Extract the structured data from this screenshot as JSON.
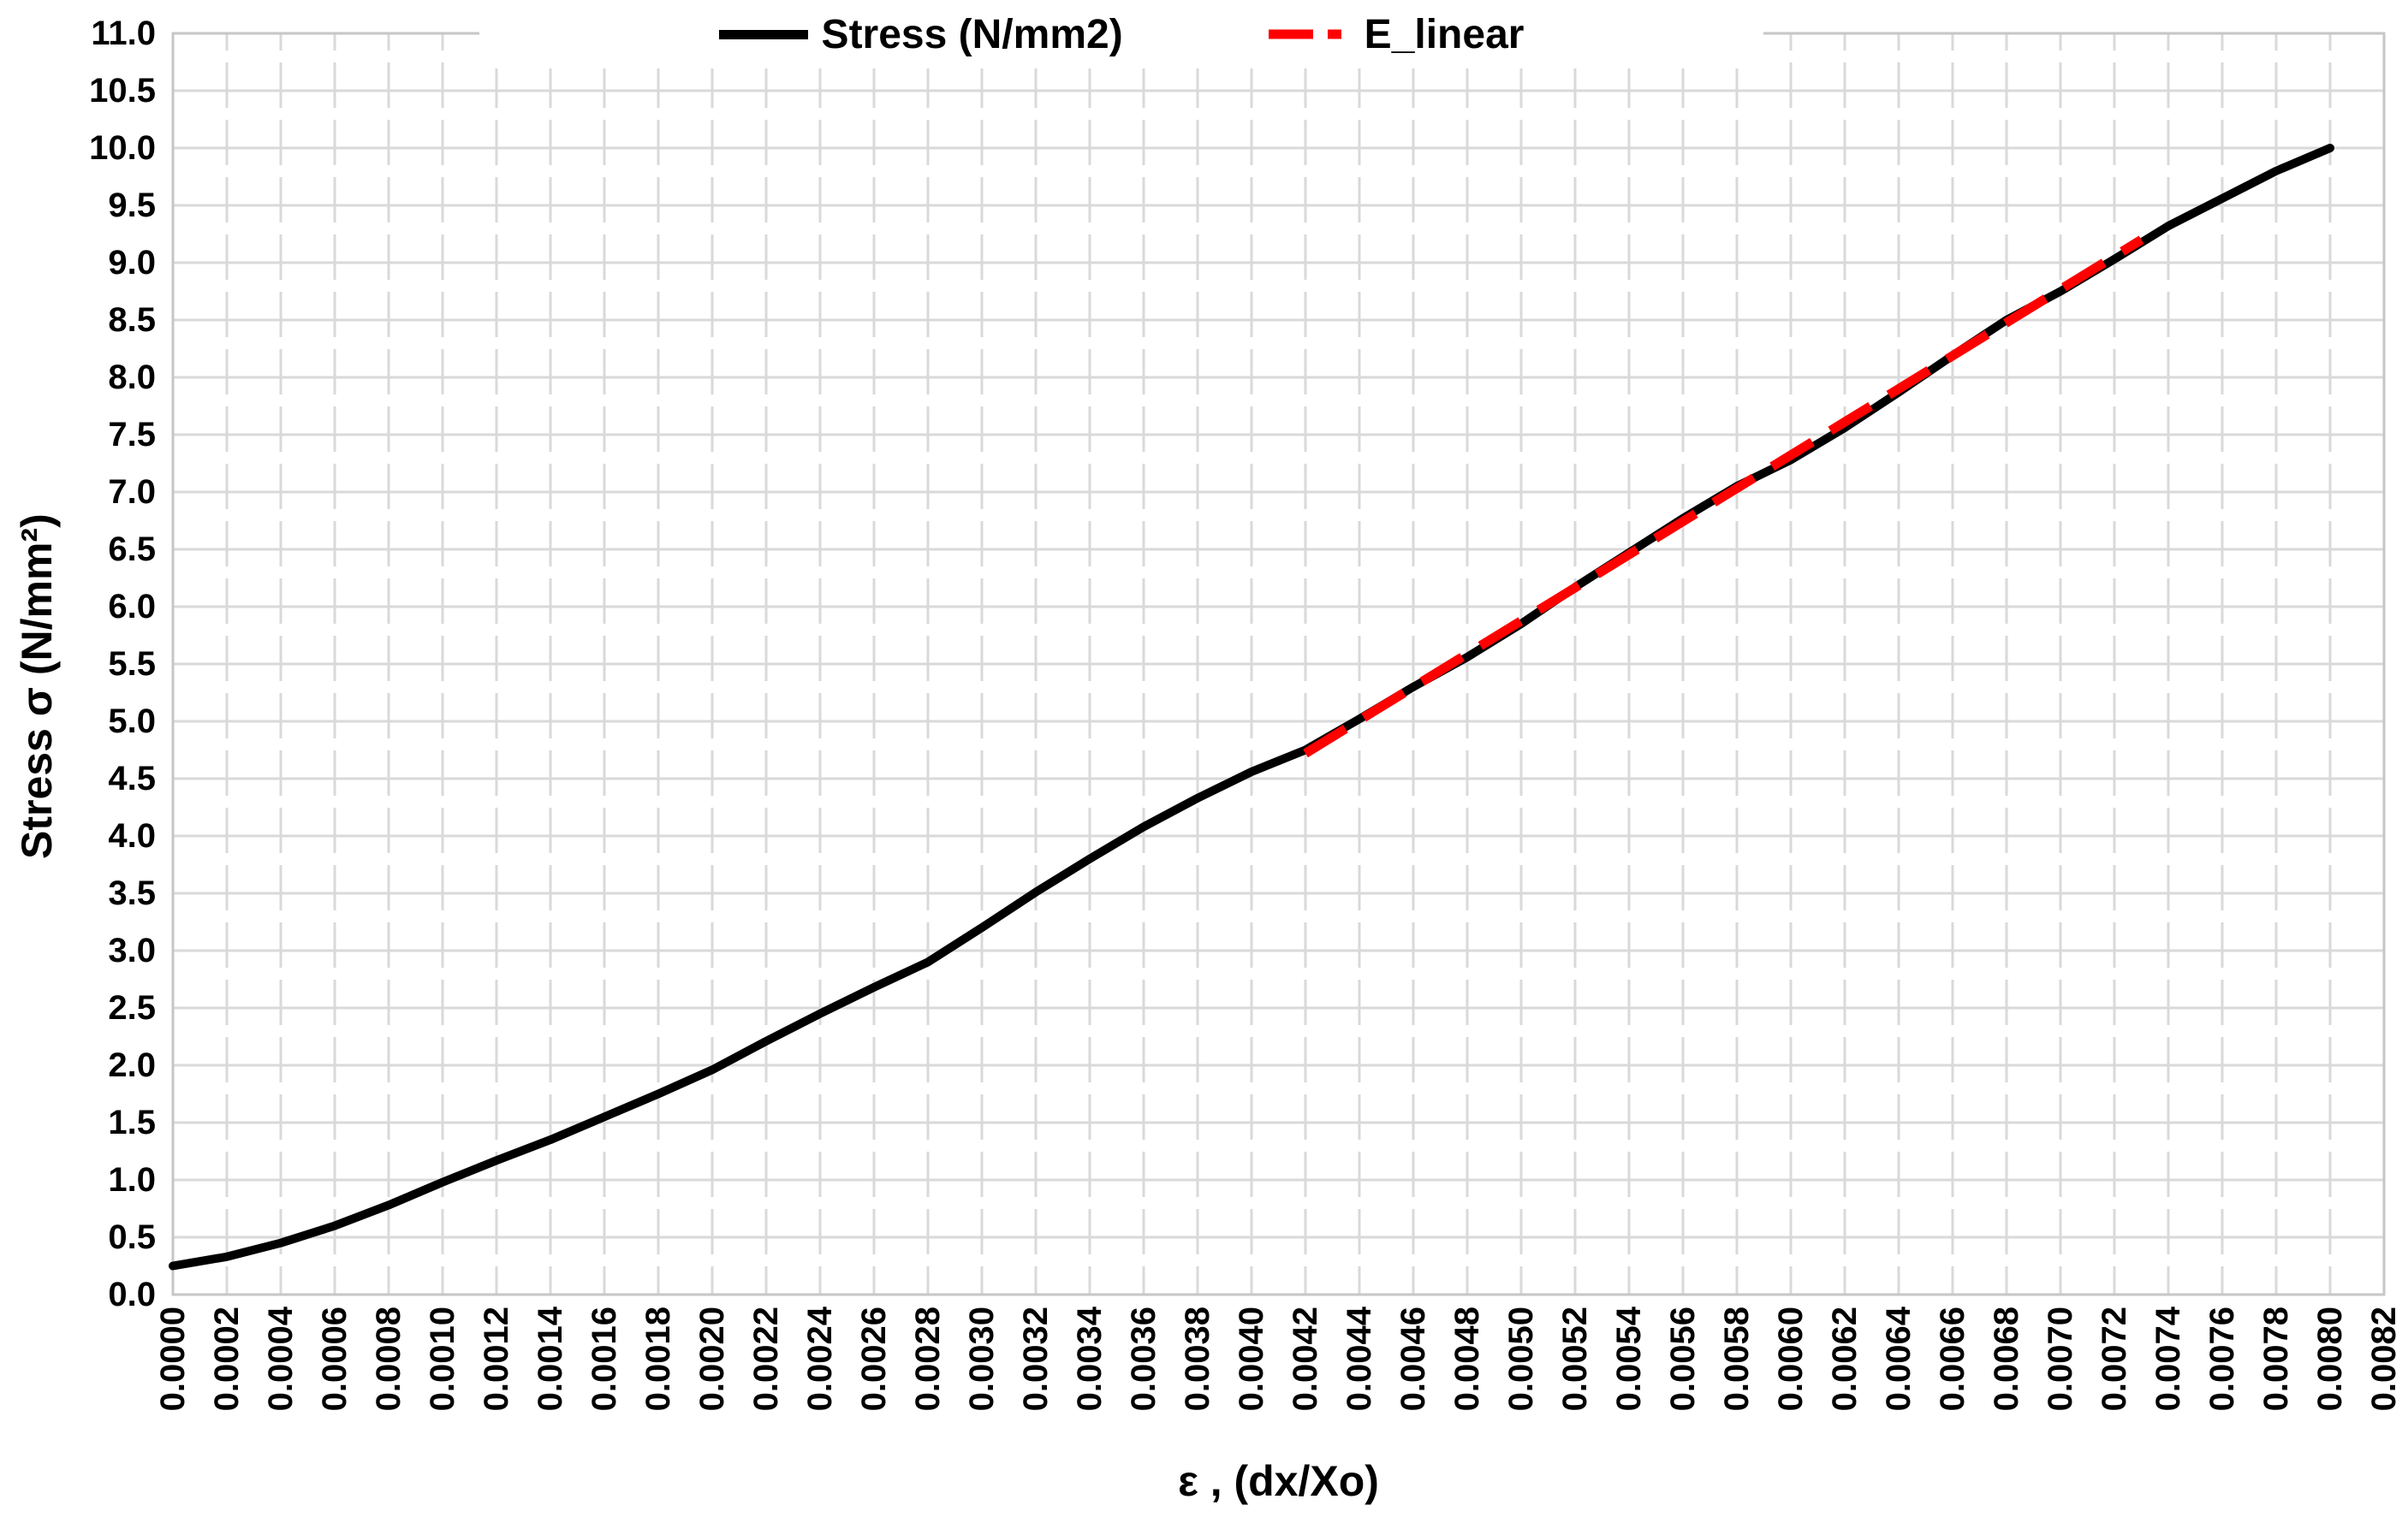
{
  "chart_data": {
    "type": "line",
    "title": "",
    "xlabel": "ε , (dx/Xo)",
    "ylabel": "Stress σ (N/mm²)",
    "legend_position": "top",
    "grid": true,
    "x_axis": {
      "min": 0.0,
      "max": 0.0082,
      "step": 0.0002,
      "decimals": 4
    },
    "y_axis": {
      "min": 0.0,
      "max": 11.0,
      "step": 0.5,
      "decimals": 1
    },
    "x_ticks": [
      "0.0000",
      "0.0002",
      "0.0004",
      "0.0006",
      "0.0008",
      "0.0010",
      "0.0012",
      "0.0014",
      "0.0016",
      "0.0018",
      "0.0020",
      "0.0022",
      "0.0024",
      "0.0026",
      "0.0028",
      "0.0030",
      "0.0032",
      "0.0034",
      "0.0036",
      "0.0038",
      "0.0040",
      "0.0042",
      "0.0044",
      "0.0046",
      "0.0048",
      "0.0050",
      "0.0052",
      "0.0054",
      "0.0056",
      "0.0058",
      "0.0060",
      "0.0062",
      "0.0064",
      "0.0066",
      "0.0068",
      "0.0070",
      "0.0072",
      "0.0074",
      "0.0076",
      "0.0078",
      "0.0080",
      "0.0082"
    ],
    "y_ticks": [
      "0.0",
      "0.5",
      "1.0",
      "1.5",
      "2.0",
      "2.5",
      "3.0",
      "3.5",
      "4.0",
      "4.5",
      "5.0",
      "5.5",
      "6.0",
      "6.5",
      "7.0",
      "7.5",
      "8.0",
      "8.5",
      "9.0",
      "9.5",
      "10.0",
      "10.5",
      "11.0"
    ],
    "colors": {
      "grid": "#D9D9D9",
      "axis_border": "#C6C6C6",
      "text": "#000000",
      "series1": "#000000",
      "series2": "#FF0000"
    },
    "series": [
      {
        "name": "Stress (N/mm2)",
        "color": "#000000",
        "style": "solid",
        "x": [
          0.0,
          0.0002,
          0.0004,
          0.0006,
          0.0008,
          0.001,
          0.0012,
          0.0014,
          0.0016,
          0.0018,
          0.002,
          0.0022,
          0.0024,
          0.0026,
          0.0028,
          0.003,
          0.0032,
          0.0034,
          0.0036,
          0.0038,
          0.004,
          0.0042,
          0.0044,
          0.0046,
          0.0048,
          0.005,
          0.0052,
          0.0054,
          0.0056,
          0.0058,
          0.006,
          0.0062,
          0.0064,
          0.0066,
          0.0068,
          0.007,
          0.0072,
          0.0074,
          0.0076,
          0.0078,
          0.008
        ],
        "y": [
          0.25,
          0.33,
          0.45,
          0.6,
          0.78,
          0.98,
          1.17,
          1.35,
          1.55,
          1.75,
          1.96,
          2.21,
          2.45,
          2.68,
          2.9,
          3.2,
          3.51,
          3.8,
          4.08,
          4.33,
          4.56,
          4.75,
          5.02,
          5.3,
          5.56,
          5.85,
          6.17,
          6.47,
          6.77,
          7.05,
          7.28,
          7.56,
          7.87,
          8.19,
          8.5,
          8.75,
          9.03,
          9.32,
          9.56,
          9.8,
          10.0
        ]
      },
      {
        "name": "E_linear",
        "color": "#FF0000",
        "style": "dashed",
        "x": [
          0.0042,
          0.0073
        ],
        "y": [
          4.72,
          9.2
        ]
      }
    ]
  }
}
